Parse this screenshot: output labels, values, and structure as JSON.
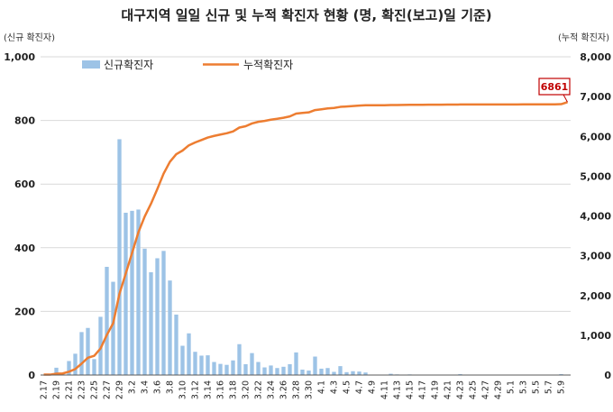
{
  "chart_data": {
    "type": "bar",
    "title": "대구지역 일일 신규 및 누적 확진자 현황 (명, 확진(보고)일 기준)",
    "left_axis_unit": "(신규 확진자)",
    "right_axis_unit": "(누적 확진자)",
    "ylim_left": [
      0,
      1000
    ],
    "ylim_right": [
      0,
      8000
    ],
    "yticks_left": [
      "0",
      "200",
      "400",
      "600",
      "800",
      "1,000"
    ],
    "yticks_right": [
      "0",
      "1,000",
      "2,000",
      "3,000",
      "4,000",
      "5,000",
      "6,000",
      "7,000",
      "8,000"
    ],
    "yticks_left_values": [
      0,
      200,
      400,
      600,
      800,
      1000
    ],
    "yticks_right_values": [
      0,
      1000,
      2000,
      3000,
      4000,
      5000,
      6000,
      7000,
      8000
    ],
    "grid": true,
    "legend_position": "top-left",
    "categories": [
      "2.17",
      "2.18",
      "2.19",
      "2.20",
      "2.21",
      "2.22",
      "2.23",
      "2.24",
      "2.25",
      "2.26",
      "2.27",
      "2.28",
      "2.29",
      "3.1",
      "3.2",
      "3.3",
      "3.4",
      "3.5",
      "3.6",
      "3.7",
      "3.8",
      "3.9",
      "3.10",
      "3.11",
      "3.12",
      "3.13",
      "3.14",
      "3.15",
      "3.16",
      "3.17",
      "3.18",
      "3.19",
      "3.20",
      "3.21",
      "3.22",
      "3.23",
      "3.24",
      "3.25",
      "3.26",
      "3.27",
      "3.28",
      "3.29",
      "3.30",
      "3.31",
      "4.1",
      "4.2",
      "4.3",
      "4.4",
      "4.5",
      "4.6",
      "4.7",
      "4.8",
      "4.9",
      "4.10",
      "4.11",
      "4.12",
      "4.13",
      "4.14",
      "4.15",
      "4.16",
      "4.17",
      "4.18",
      "4.19",
      "4.20",
      "4.21",
      "4.22",
      "4.23",
      "4.24",
      "4.25",
      "4.26",
      "4.27",
      "4.28",
      "4.29",
      "4.30",
      "5.1",
      "5.2",
      "5.3",
      "5.4",
      "5.5",
      "5.6",
      "5.7",
      "5.8",
      "5.9",
      "5.10"
    ],
    "series": [
      {
        "name": "신규확진자",
        "type": "bar",
        "axis": "left",
        "color": "#9dc3e6",
        "values": [
          1,
          0,
          23,
          7,
          44,
          67,
          135,
          148,
          50,
          183,
          340,
          293,
          741,
          510,
          516,
          520,
          397,
          323,
          367,
          390,
          297,
          190,
          92,
          131,
          73,
          61,
          62,
          41,
          35,
          32,
          46,
          97,
          34,
          69,
          41,
          24,
          30,
          22,
          26,
          34,
          71,
          17,
          14,
          58,
          20,
          22,
          10,
          28,
          9,
          12,
          11,
          8,
          1,
          0,
          1,
          4,
          2,
          1,
          2,
          1,
          1,
          1,
          1,
          1,
          1,
          0,
          3,
          0,
          1,
          0,
          0,
          0,
          1,
          0,
          0,
          0,
          1,
          0,
          1,
          0,
          1,
          0,
          3,
          0
        ]
      },
      {
        "name": "누적확진자",
        "type": "line",
        "axis": "right",
        "color": "#ed7d31",
        "values": [
          10,
          10,
          33,
          40,
          84,
          151,
          286,
          434,
          484,
          667,
          1007,
          1300,
          2041,
          2551,
          3067,
          3587,
          3984,
          4307,
          4674,
          5064,
          5361,
          5551,
          5643,
          5774,
          5847,
          5908,
          5970,
          6011,
          6046,
          6078,
          6124,
          6221,
          6255,
          6324,
          6365,
          6389,
          6419,
          6441,
          6467,
          6501,
          6572,
          6589,
          6603,
          6661,
          6681,
          6703,
          6713,
          6741,
          6750,
          6762,
          6773,
          6781,
          6782,
          6782,
          6783,
          6787,
          6789,
          6790,
          6792,
          6793,
          6794,
          6795,
          6796,
          6797,
          6798,
          6798,
          6801,
          6801,
          6802,
          6802,
          6802,
          6802,
          6803,
          6803,
          6803,
          6803,
          6804,
          6804,
          6805,
          6805,
          6806,
          6806,
          6809,
          6861
        ]
      }
    ],
    "xtick_labels_shown": [
      "2.17",
      "2.19",
      "2.21",
      "2.23",
      "2.25",
      "2.27",
      "2.29",
      "3.2",
      "3.4",
      "3.6",
      "3.8",
      "3.10",
      "3.12",
      "3.14",
      "3.16",
      "3.18",
      "3.20",
      "3.22",
      "3.24",
      "3.26",
      "3.28",
      "3.30",
      "4.1",
      "4.3",
      "4.5",
      "4.7",
      "4.9",
      "4.11",
      "4.13",
      "4.15",
      "4.17",
      "4.19",
      "4.21",
      "4.23",
      "4.25",
      "4.27",
      "4.29",
      "5.1",
      "5.3",
      "5.5",
      "5.7",
      "5.9"
    ],
    "annotation": {
      "label": "6861",
      "series": "누적확진자",
      "at": "5.10"
    }
  }
}
